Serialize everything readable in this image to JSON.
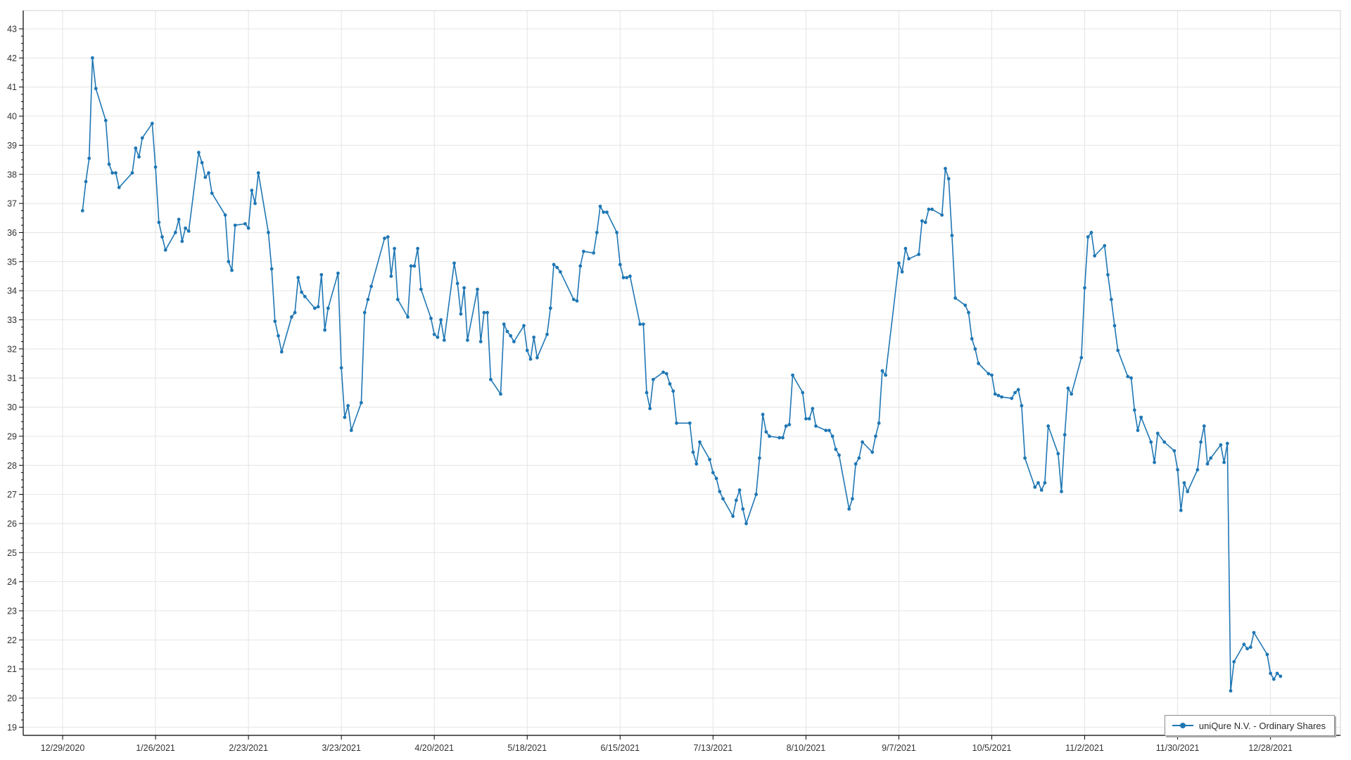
{
  "legend": {
    "label": "uniQure N.V. - Ordinary Shares"
  },
  "chart_data": {
    "type": "line",
    "title": "",
    "xlabel": "",
    "ylabel": "",
    "ylim": [
      19,
      43
    ],
    "y_tick_step": 1,
    "y_minor_tick_step": 0.25,
    "y_tick_labels": [
      19,
      20,
      21,
      22,
      23,
      24,
      25,
      26,
      27,
      28,
      29,
      30,
      31,
      32,
      33,
      34,
      35,
      36,
      37,
      38,
      39,
      40,
      41,
      42,
      43
    ],
    "grid": true,
    "legend_position": "bottom-right",
    "x_axis_start": "2020-12-29",
    "x_ticks": [
      "2020-12-29",
      "2021-01-26",
      "2021-02-23",
      "2021-03-23",
      "2021-04-20",
      "2021-05-18",
      "2021-06-15",
      "2021-07-13",
      "2021-08-10",
      "2021-09-07",
      "2021-10-05",
      "2021-11-02",
      "2021-11-30",
      "2021-12-28"
    ],
    "x_tick_labels": [
      "12/29/2020",
      "1/26/2021",
      "2/23/2021",
      "3/23/2021",
      "4/20/2021",
      "5/18/2021",
      "6/15/2021",
      "7/13/2021",
      "8/10/2021",
      "9/7/2021",
      "10/5/2021",
      "11/2/2021",
      "11/30/2021",
      "12/28/2021"
    ],
    "colors": {
      "series": "#1f77b4",
      "grid": "#e4e4e4",
      "axis": "#000000",
      "plot_border": "#d2d2d2",
      "text": "#333333"
    },
    "series": [
      {
        "name": "uniQure N.V. - Ordinary Shares",
        "color": "#1f77b4",
        "points": [
          [
            "2021-01-04",
            36.75
          ],
          [
            "2021-01-05",
            37.75
          ],
          [
            "2021-01-06",
            38.55
          ],
          [
            "2021-01-07",
            42.0
          ],
          [
            "2021-01-08",
            40.95
          ],
          [
            "2021-01-11",
            39.85
          ],
          [
            "2021-01-12",
            38.35
          ],
          [
            "2021-01-13",
            38.05
          ],
          [
            "2021-01-14",
            38.05
          ],
          [
            "2021-01-15",
            37.55
          ],
          [
            "2021-01-19",
            38.05
          ],
          [
            "2021-01-20",
            38.9
          ],
          [
            "2021-01-21",
            38.6
          ],
          [
            "2021-01-22",
            39.25
          ],
          [
            "2021-01-25",
            39.75
          ],
          [
            "2021-01-26",
            38.25
          ],
          [
            "2021-01-27",
            36.35
          ],
          [
            "2021-01-28",
            35.85
          ],
          [
            "2021-01-29",
            35.4
          ],
          [
            "2021-02-01",
            36.0
          ],
          [
            "2021-02-02",
            36.45
          ],
          [
            "2021-02-03",
            35.7
          ],
          [
            "2021-02-04",
            36.15
          ],
          [
            "2021-02-05",
            36.05
          ],
          [
            "2021-02-08",
            38.75
          ],
          [
            "2021-02-09",
            38.4
          ],
          [
            "2021-02-10",
            37.9
          ],
          [
            "2021-02-11",
            38.05
          ],
          [
            "2021-02-12",
            37.35
          ],
          [
            "2021-02-16",
            36.6
          ],
          [
            "2021-02-17",
            35.0
          ],
          [
            "2021-02-18",
            34.7
          ],
          [
            "2021-02-19",
            36.25
          ],
          [
            "2021-02-22",
            36.3
          ],
          [
            "2021-02-23",
            36.15
          ],
          [
            "2021-02-24",
            37.45
          ],
          [
            "2021-02-25",
            37.0
          ],
          [
            "2021-02-26",
            38.05
          ],
          [
            "2021-03-01",
            36.0
          ],
          [
            "2021-03-02",
            34.75
          ],
          [
            "2021-03-03",
            32.95
          ],
          [
            "2021-03-04",
            32.45
          ],
          [
            "2021-03-05",
            31.9
          ],
          [
            "2021-03-08",
            33.1
          ],
          [
            "2021-03-09",
            33.25
          ],
          [
            "2021-03-10",
            34.45
          ],
          [
            "2021-03-11",
            33.95
          ],
          [
            "2021-03-12",
            33.8
          ],
          [
            "2021-03-15",
            33.4
          ],
          [
            "2021-03-16",
            33.45
          ],
          [
            "2021-03-17",
            34.55
          ],
          [
            "2021-03-18",
            32.65
          ],
          [
            "2021-03-19",
            33.4
          ],
          [
            "2021-03-22",
            34.6
          ],
          [
            "2021-03-23",
            31.35
          ],
          [
            "2021-03-24",
            29.65
          ],
          [
            "2021-03-25",
            30.05
          ],
          [
            "2021-03-26",
            29.2
          ],
          [
            "2021-03-29",
            30.15
          ],
          [
            "2021-03-30",
            33.25
          ],
          [
            "2021-03-31",
            33.7
          ],
          [
            "2021-04-01",
            34.15
          ],
          [
            "2021-04-05",
            35.8
          ],
          [
            "2021-04-06",
            35.85
          ],
          [
            "2021-04-07",
            34.5
          ],
          [
            "2021-04-08",
            35.45
          ],
          [
            "2021-04-09",
            33.7
          ],
          [
            "2021-04-12",
            33.1
          ],
          [
            "2021-04-13",
            34.85
          ],
          [
            "2021-04-14",
            34.85
          ],
          [
            "2021-04-15",
            35.45
          ],
          [
            "2021-04-16",
            34.05
          ],
          [
            "2021-04-19",
            33.05
          ],
          [
            "2021-04-20",
            32.5
          ],
          [
            "2021-04-21",
            32.4
          ],
          [
            "2021-04-22",
            33.0
          ],
          [
            "2021-04-23",
            32.3
          ],
          [
            "2021-04-26",
            34.95
          ],
          [
            "2021-04-27",
            34.25
          ],
          [
            "2021-04-28",
            33.2
          ],
          [
            "2021-04-29",
            34.1
          ],
          [
            "2021-04-30",
            32.3
          ],
          [
            "2021-05-03",
            34.05
          ],
          [
            "2021-05-04",
            32.25
          ],
          [
            "2021-05-05",
            33.25
          ],
          [
            "2021-05-06",
            33.25
          ],
          [
            "2021-05-07",
            30.95
          ],
          [
            "2021-05-10",
            30.45
          ],
          [
            "2021-05-11",
            32.85
          ],
          [
            "2021-05-12",
            32.6
          ],
          [
            "2021-05-13",
            32.45
          ],
          [
            "2021-05-14",
            32.25
          ],
          [
            "2021-05-17",
            32.8
          ],
          [
            "2021-05-18",
            31.95
          ],
          [
            "2021-05-19",
            31.65
          ],
          [
            "2021-05-20",
            32.4
          ],
          [
            "2021-05-21",
            31.7
          ],
          [
            "2021-05-24",
            32.5
          ],
          [
            "2021-05-25",
            33.4
          ],
          [
            "2021-05-26",
            34.9
          ],
          [
            "2021-05-27",
            34.8
          ],
          [
            "2021-05-28",
            34.65
          ],
          [
            "2021-06-01",
            33.7
          ],
          [
            "2021-06-02",
            33.65
          ],
          [
            "2021-06-03",
            34.85
          ],
          [
            "2021-06-04",
            35.35
          ],
          [
            "2021-06-07",
            35.3
          ],
          [
            "2021-06-08",
            36.0
          ],
          [
            "2021-06-09",
            36.9
          ],
          [
            "2021-06-10",
            36.7
          ],
          [
            "2021-06-11",
            36.7
          ],
          [
            "2021-06-14",
            36.0
          ],
          [
            "2021-06-15",
            34.9
          ],
          [
            "2021-06-16",
            34.45
          ],
          [
            "2021-06-17",
            34.45
          ],
          [
            "2021-06-18",
            34.5
          ],
          [
            "2021-06-21",
            32.85
          ],
          [
            "2021-06-22",
            32.85
          ],
          [
            "2021-06-23",
            30.5
          ],
          [
            "2021-06-24",
            29.95
          ],
          [
            "2021-06-25",
            30.95
          ],
          [
            "2021-06-28",
            31.2
          ],
          [
            "2021-06-29",
            31.15
          ],
          [
            "2021-06-30",
            30.8
          ],
          [
            "2021-07-01",
            30.55
          ],
          [
            "2021-07-02",
            29.45
          ],
          [
            "2021-07-06",
            29.45
          ],
          [
            "2021-07-07",
            28.45
          ],
          [
            "2021-07-08",
            28.05
          ],
          [
            "2021-07-09",
            28.8
          ],
          [
            "2021-07-12",
            28.2
          ],
          [
            "2021-07-13",
            27.75
          ],
          [
            "2021-07-14",
            27.55
          ],
          [
            "2021-07-15",
            27.1
          ],
          [
            "2021-07-16",
            26.85
          ],
          [
            "2021-07-19",
            26.25
          ],
          [
            "2021-07-20",
            26.8
          ],
          [
            "2021-07-21",
            27.15
          ],
          [
            "2021-07-22",
            26.5
          ],
          [
            "2021-07-23",
            26.0
          ],
          [
            "2021-07-26",
            27.0
          ],
          [
            "2021-07-27",
            28.25
          ],
          [
            "2021-07-28",
            29.75
          ],
          [
            "2021-07-29",
            29.15
          ],
          [
            "2021-07-30",
            29.0
          ],
          [
            "2021-08-02",
            28.95
          ],
          [
            "2021-08-03",
            28.95
          ],
          [
            "2021-08-04",
            29.35
          ],
          [
            "2021-08-05",
            29.4
          ],
          [
            "2021-08-06",
            31.1
          ],
          [
            "2021-08-09",
            30.5
          ],
          [
            "2021-08-10",
            29.6
          ],
          [
            "2021-08-11",
            29.6
          ],
          [
            "2021-08-12",
            29.95
          ],
          [
            "2021-08-13",
            29.35
          ],
          [
            "2021-08-16",
            29.2
          ],
          [
            "2021-08-17",
            29.2
          ],
          [
            "2021-08-18",
            29.0
          ],
          [
            "2021-08-19",
            28.55
          ],
          [
            "2021-08-20",
            28.35
          ],
          [
            "2021-08-23",
            26.5
          ],
          [
            "2021-08-24",
            26.85
          ],
          [
            "2021-08-25",
            28.05
          ],
          [
            "2021-08-26",
            28.25
          ],
          [
            "2021-08-27",
            28.8
          ],
          [
            "2021-08-30",
            28.45
          ],
          [
            "2021-08-31",
            29.0
          ],
          [
            "2021-09-01",
            29.45
          ],
          [
            "2021-09-02",
            31.25
          ],
          [
            "2021-09-03",
            31.1
          ],
          [
            "2021-09-07",
            34.95
          ],
          [
            "2021-09-08",
            34.65
          ],
          [
            "2021-09-09",
            35.45
          ],
          [
            "2021-09-10",
            35.1
          ],
          [
            "2021-09-13",
            35.25
          ],
          [
            "2021-09-14",
            36.4
          ],
          [
            "2021-09-15",
            36.35
          ],
          [
            "2021-09-16",
            36.8
          ],
          [
            "2021-09-17",
            36.8
          ],
          [
            "2021-09-20",
            36.6
          ],
          [
            "2021-09-21",
            38.2
          ],
          [
            "2021-09-22",
            37.85
          ],
          [
            "2021-09-23",
            35.9
          ],
          [
            "2021-09-24",
            33.75
          ],
          [
            "2021-09-27",
            33.5
          ],
          [
            "2021-09-28",
            33.25
          ],
          [
            "2021-09-29",
            32.35
          ],
          [
            "2021-09-30",
            32.0
          ],
          [
            "2021-10-01",
            31.5
          ],
          [
            "2021-10-04",
            31.15
          ],
          [
            "2021-10-05",
            31.1
          ],
          [
            "2021-10-06",
            30.45
          ],
          [
            "2021-10-07",
            30.4
          ],
          [
            "2021-10-08",
            30.35
          ],
          [
            "2021-10-11",
            30.3
          ],
          [
            "2021-10-12",
            30.5
          ],
          [
            "2021-10-13",
            30.6
          ],
          [
            "2021-10-14",
            30.05
          ],
          [
            "2021-10-15",
            28.25
          ],
          [
            "2021-10-18",
            27.25
          ],
          [
            "2021-10-19",
            27.4
          ],
          [
            "2021-10-20",
            27.15
          ],
          [
            "2021-10-21",
            27.4
          ],
          [
            "2021-10-22",
            29.35
          ],
          [
            "2021-10-25",
            28.4
          ],
          [
            "2021-10-26",
            27.1
          ],
          [
            "2021-10-27",
            29.05
          ],
          [
            "2021-10-28",
            30.65
          ],
          [
            "2021-10-29",
            30.45
          ],
          [
            "2021-11-01",
            31.7
          ],
          [
            "2021-11-02",
            34.1
          ],
          [
            "2021-11-03",
            35.85
          ],
          [
            "2021-11-04",
            36.0
          ],
          [
            "2021-11-05",
            35.2
          ],
          [
            "2021-11-08",
            35.55
          ],
          [
            "2021-11-09",
            34.55
          ],
          [
            "2021-11-10",
            33.7
          ],
          [
            "2021-11-11",
            32.8
          ],
          [
            "2021-11-12",
            31.95
          ],
          [
            "2021-11-15",
            31.05
          ],
          [
            "2021-11-16",
            31.0
          ],
          [
            "2021-11-17",
            29.9
          ],
          [
            "2021-11-18",
            29.2
          ],
          [
            "2021-11-19",
            29.65
          ],
          [
            "2021-11-22",
            28.8
          ],
          [
            "2021-11-23",
            28.1
          ],
          [
            "2021-11-24",
            29.1
          ],
          [
            "2021-11-26",
            28.8
          ],
          [
            "2021-11-29",
            28.5
          ],
          [
            "2021-11-30",
            27.85
          ],
          [
            "2021-12-01",
            26.45
          ],
          [
            "2021-12-02",
            27.4
          ],
          [
            "2021-12-03",
            27.1
          ],
          [
            "2021-12-06",
            27.85
          ],
          [
            "2021-12-07",
            28.8
          ],
          [
            "2021-12-08",
            29.35
          ],
          [
            "2021-12-09",
            28.05
          ],
          [
            "2021-12-10",
            28.25
          ],
          [
            "2021-12-13",
            28.7
          ],
          [
            "2021-12-14",
            28.1
          ],
          [
            "2021-12-15",
            28.75
          ],
          [
            "2021-12-16",
            20.25
          ],
          [
            "2021-12-17",
            21.25
          ],
          [
            "2021-12-20",
            21.85
          ],
          [
            "2021-12-21",
            21.7
          ],
          [
            "2021-12-22",
            21.75
          ],
          [
            "2021-12-23",
            22.25
          ],
          [
            "2021-12-27",
            21.5
          ],
          [
            "2021-12-28",
            20.85
          ],
          [
            "2021-12-29",
            20.65
          ],
          [
            "2021-12-30",
            20.85
          ],
          [
            "2021-12-31",
            20.75
          ]
        ]
      }
    ]
  }
}
